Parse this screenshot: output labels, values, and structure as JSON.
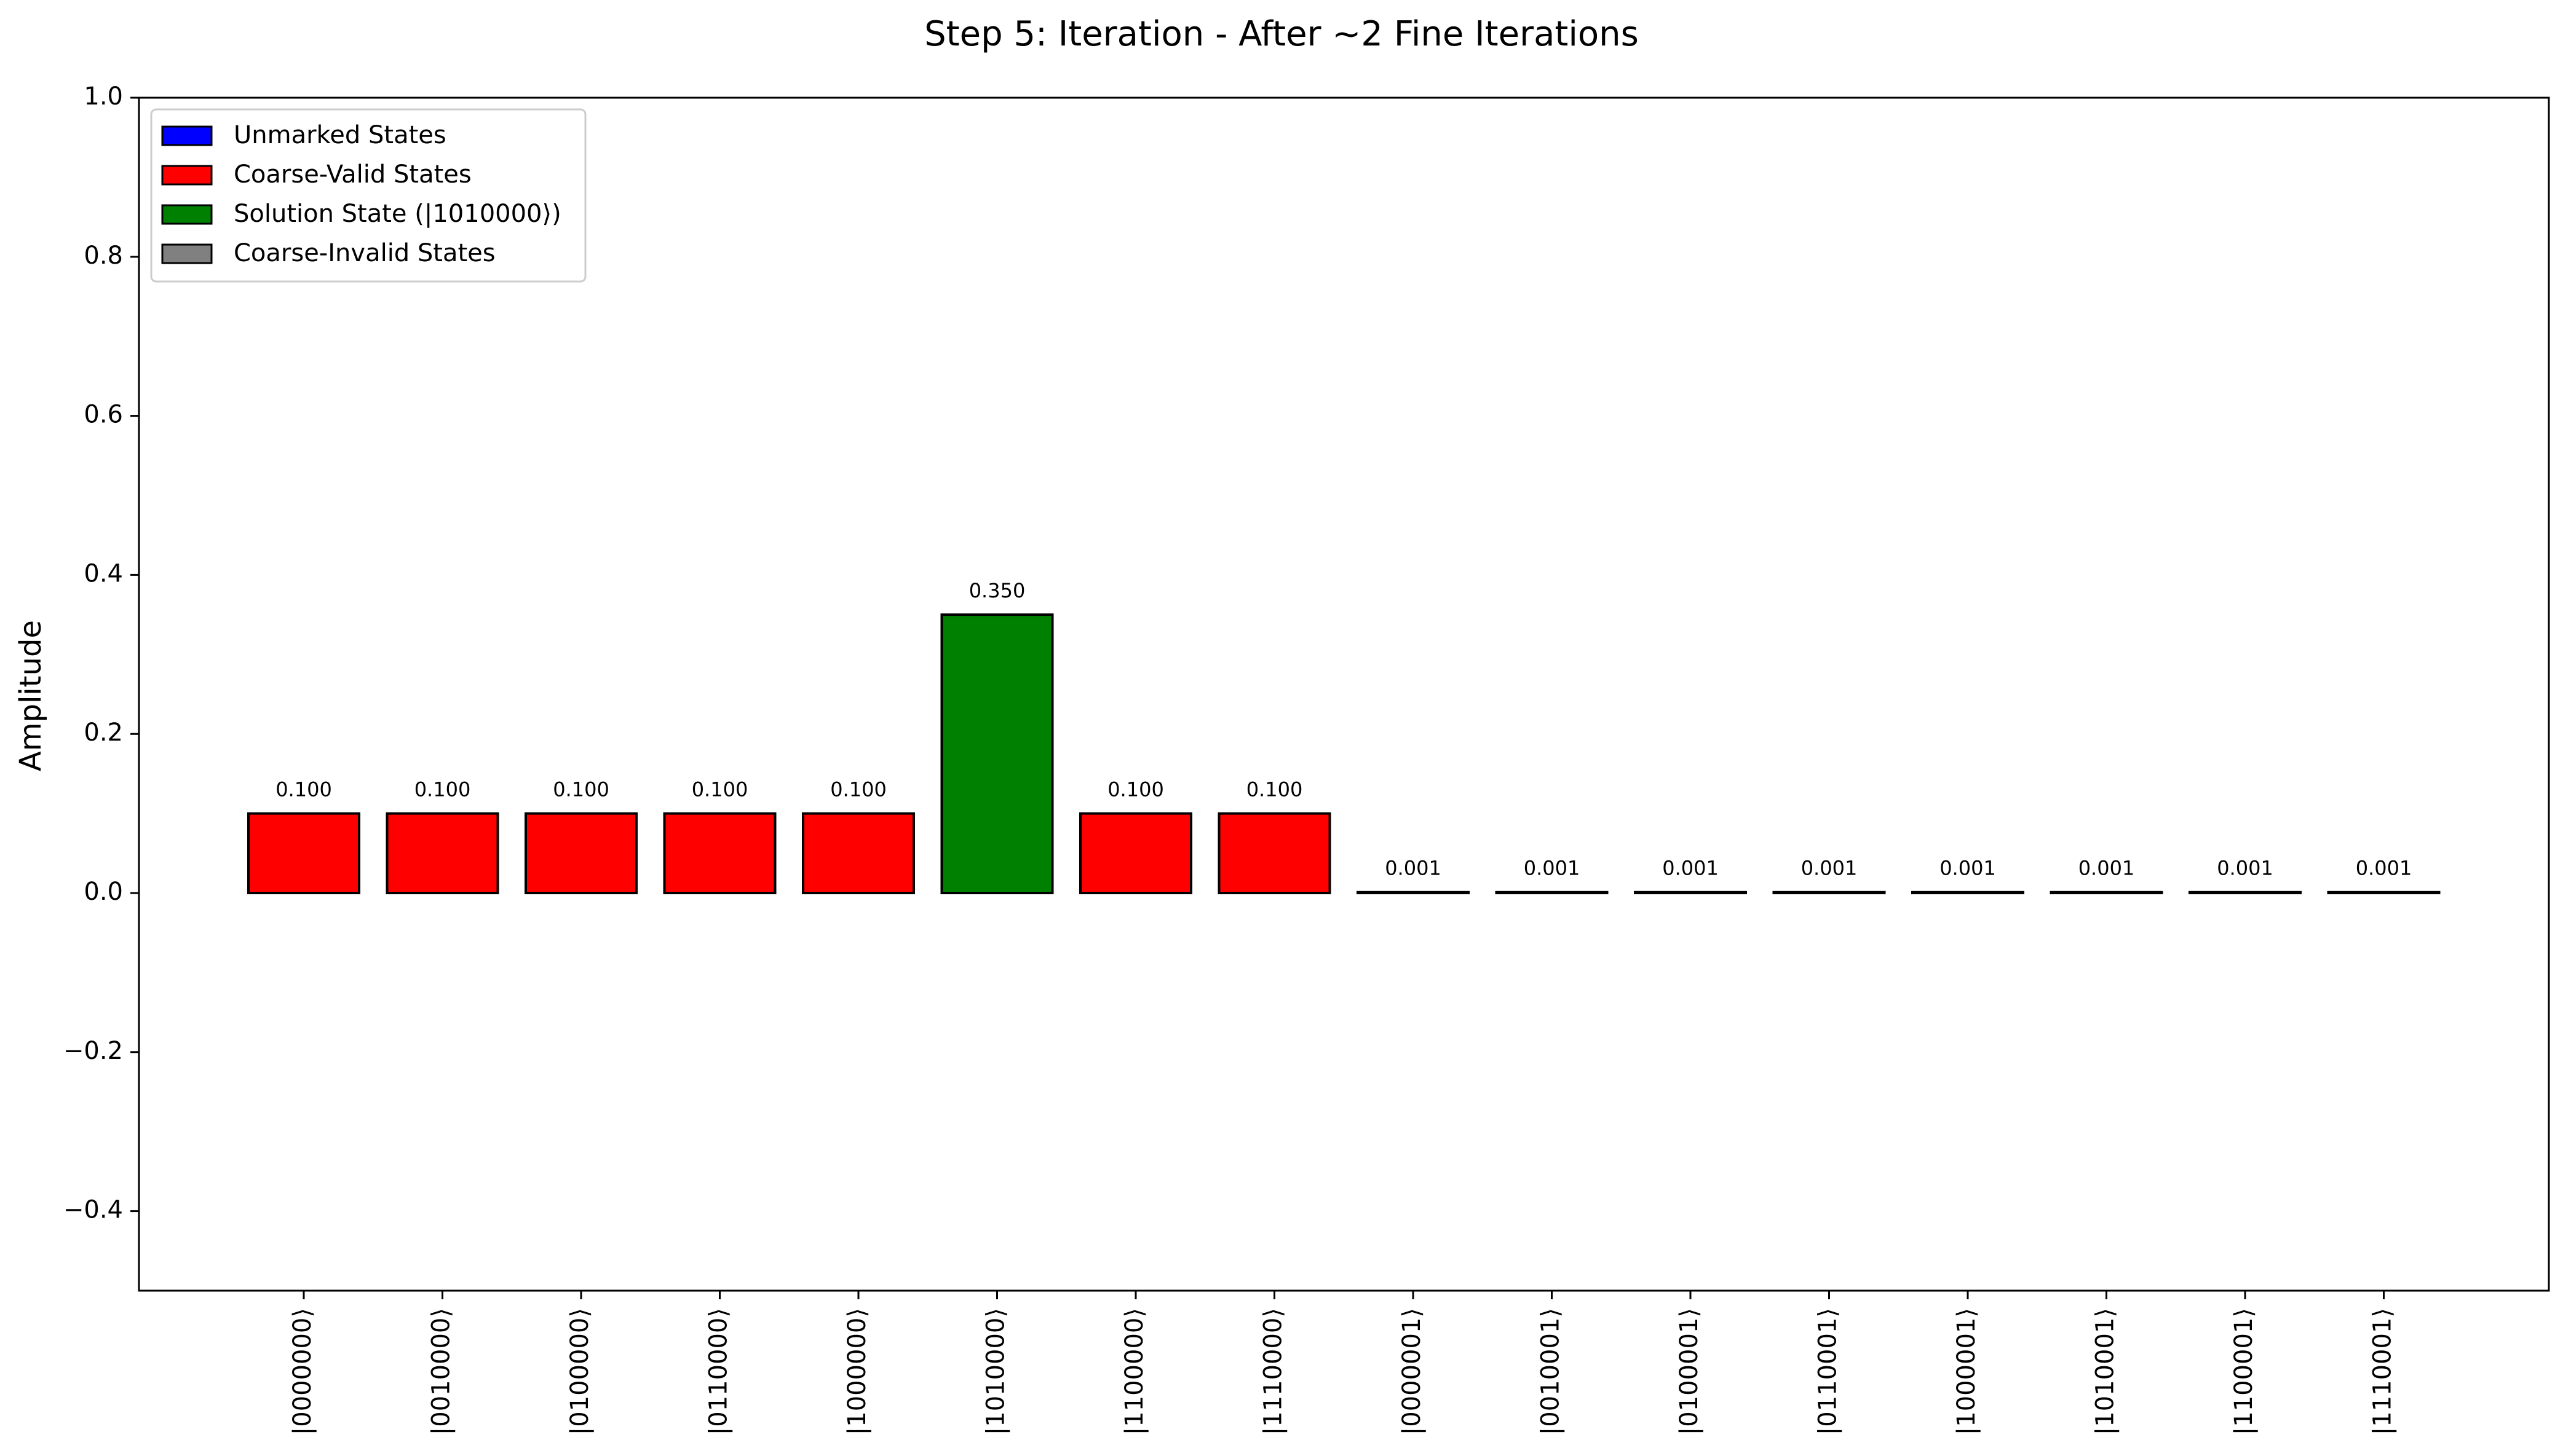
{
  "chart_data": {
    "type": "bar",
    "title": "Step 5: Iteration - After ~2 Fine Iterations",
    "xlabel": "",
    "ylabel": "Amplitude",
    "ylim": [
      -0.5,
      1.0
    ],
    "yticks": [
      -0.4,
      -0.2,
      0.0,
      0.2,
      0.4,
      0.6,
      0.8,
      1.0
    ],
    "ytick_labels": [
      "−0.4",
      "−0.2",
      "0.0",
      "0.2",
      "0.4",
      "0.6",
      "0.8",
      "1.0"
    ],
    "grid": false,
    "legend_position": "top-left",
    "categories": [
      "|0000000⟩",
      "|0010000⟩",
      "|0100000⟩",
      "|0110000⟩",
      "|1000000⟩",
      "|1010000⟩",
      "|1100000⟩",
      "|1110000⟩",
      "|0000001⟩",
      "|0010001⟩",
      "|0100001⟩",
      "|0110001⟩",
      "|1000001⟩",
      "|1010001⟩",
      "|1100001⟩",
      "|1110001⟩"
    ],
    "values": [
      0.1,
      0.1,
      0.1,
      0.1,
      0.1,
      0.35,
      0.1,
      0.1,
      0.001,
      0.001,
      0.001,
      0.001,
      0.001,
      0.001,
      0.001,
      0.001
    ],
    "value_labels": [
      "0.100",
      "0.100",
      "0.100",
      "0.100",
      "0.100",
      "0.350",
      "0.100",
      "0.100",
      "0.001",
      "0.001",
      "0.001",
      "0.001",
      "0.001",
      "0.001",
      "0.001",
      "0.001"
    ],
    "bar_groups": [
      "coarse-valid",
      "coarse-valid",
      "coarse-valid",
      "coarse-valid",
      "coarse-valid",
      "solution",
      "coarse-valid",
      "coarse-valid",
      "coarse-invalid",
      "coarse-invalid",
      "coarse-invalid",
      "coarse-invalid",
      "coarse-invalid",
      "coarse-invalid",
      "coarse-invalid",
      "coarse-invalid"
    ],
    "legend": [
      {
        "label": "Unmarked States",
        "group": "unmarked",
        "color": "#0000ff"
      },
      {
        "label": "Coarse-Valid States",
        "group": "coarse-valid",
        "color": "#ff0000"
      },
      {
        "label": "Solution State (|1010000⟩)",
        "group": "solution",
        "color": "#008000"
      },
      {
        "label": "Coarse-Invalid States",
        "group": "coarse-invalid",
        "color": "#808080"
      }
    ]
  }
}
